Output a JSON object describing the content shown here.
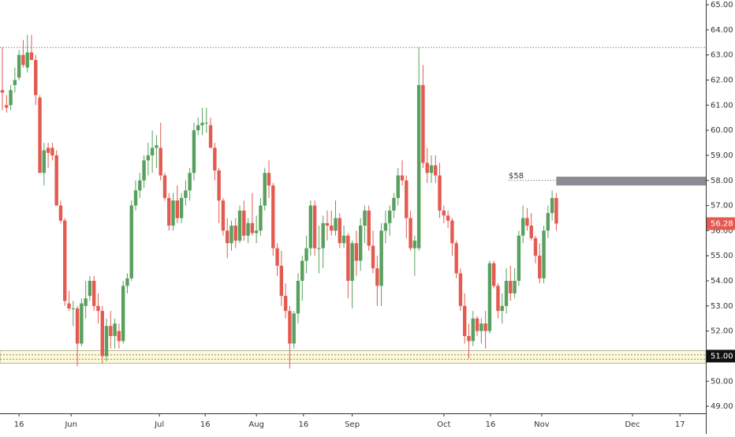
{
  "chart_data": {
    "type": "candlestick",
    "up_color": "#57a05e",
    "down_color": "#e35a50",
    "open": [
      61.6,
      61.0,
      61.0,
      61.8,
      62.1,
      63.0,
      62.5,
      63.1,
      62.8,
      61.3,
      58.3,
      59.3,
      59.3,
      59.0,
      57.0,
      56.4,
      53.1,
      52.9,
      52.9,
      51.5,
      53.0,
      53.4,
      54.0,
      53.0,
      52.8,
      51.0,
      52.2,
      51.8,
      52.0,
      51.6,
      53.8,
      54.1,
      57.0,
      57.6,
      58.0,
      58.8,
      59.0,
      59.3,
      59.3,
      58.2,
      57.3,
      56.2,
      57.2,
      56.5,
      57.3,
      57.6,
      58.3,
      60.0,
      60.2,
      60.3,
      60.2,
      59.3,
      58.4,
      57.2,
      56.0,
      55.5,
      56.2,
      55.6,
      56.8,
      55.8,
      56.3,
      55.9,
      56.0,
      57.0,
      58.3,
      57.8,
      55.3,
      54.6,
      53.4,
      52.8,
      51.5,
      52.7,
      54.0,
      54.8,
      55.3,
      57.0,
      55.3,
      55.3,
      56.3,
      56.2,
      56.0,
      56.5,
      55.5,
      55.8,
      54.0,
      55.5,
      54.8,
      56.2,
      56.8,
      55.4,
      54.5,
      53.8,
      56.0,
      56.3,
      56.8,
      57.3,
      58.2,
      58.0,
      56.5,
      55.3,
      55.3,
      61.8,
      58.7,
      58.3,
      58.6,
      58.2,
      56.8,
      56.6,
      56.4,
      55.5,
      54.3,
      53.0,
      51.8,
      51.6,
      52.5,
      52.0,
      52.3,
      52.0,
      54.7,
      53.8,
      52.8,
      53.0,
      54.0,
      53.5,
      54.0,
      55.8,
      56.5,
      56.2,
      55.7,
      55.0,
      54.1,
      56.0,
      56.7,
      57.3
    ],
    "high": [
      63.3,
      61.4,
      61.8,
      62.5,
      63.2,
      63.6,
      63.8,
      63.8,
      63.0,
      61.4,
      59.5,
      59.5,
      59.5,
      59.2,
      57.2,
      56.5,
      53.6,
      53.2,
      53.0,
      53.3,
      54.0,
      54.2,
      54.2,
      53.5,
      53.0,
      52.5,
      52.8,
      52.5,
      52.3,
      54.0,
      54.3,
      57.2,
      58.0,
      58.3,
      59.0,
      59.5,
      60.0,
      59.8,
      60.3,
      58.3,
      57.5,
      57.5,
      57.8,
      57.5,
      58.0,
      58.5,
      60.3,
      60.5,
      60.9,
      60.9,
      60.5,
      59.5,
      58.5,
      57.3,
      56.5,
      56.4,
      56.5,
      57.0,
      57.2,
      56.5,
      57.5,
      56.6,
      57.3,
      58.5,
      58.8,
      57.9,
      55.5,
      55.2,
      53.9,
      53.0,
      52.8,
      54.3,
      55.0,
      55.8,
      57.2,
      57.2,
      56.2,
      56.6,
      56.8,
      56.8,
      57.2,
      56.7,
      56.2,
      55.9,
      55.6,
      56.0,
      56.5,
      57.0,
      57.0,
      56.0,
      55.0,
      56.3,
      56.8,
      57.0,
      57.5,
      58.5,
      58.8,
      58.2,
      56.8,
      55.8,
      63.3,
      62.6,
      59.3,
      59.0,
      59.0,
      58.7,
      57.0,
      56.8,
      56.5,
      55.6,
      54.5,
      53.5,
      52.3,
      52.8,
      52.6,
      52.5,
      52.8,
      54.8,
      54.8,
      53.9,
      53.5,
      54.5,
      54.6,
      54.5,
      56.0,
      57.0,
      56.9,
      56.7,
      55.8,
      55.5,
      56.2,
      57.0,
      57.6,
      57.5
    ],
    "low": [
      60.8,
      60.7,
      60.8,
      61.5,
      62.0,
      62.5,
      62.3,
      62.8,
      61.0,
      58.3,
      57.8,
      58.5,
      58.8,
      57.0,
      56.3,
      53.0,
      52.8,
      52.2,
      50.6,
      51.4,
      52.5,
      53.2,
      52.8,
      52.3,
      50.7,
      50.8,
      51.3,
      51.3,
      51.3,
      51.5,
      53.5,
      54.0,
      56.8,
      57.3,
      57.7,
      58.2,
      58.3,
      58.5,
      58.0,
      57.2,
      56.0,
      56.0,
      56.3,
      56.3,
      57.0,
      57.2,
      58.0,
      59.8,
      59.8,
      59.9,
      59.3,
      58.0,
      56.3,
      55.8,
      54.9,
      55.2,
      55.3,
      55.5,
      55.6,
      55.5,
      55.8,
      55.5,
      55.8,
      56.8,
      57.3,
      55.0,
      54.2,
      53.0,
      52.5,
      50.5,
      51.3,
      52.3,
      53.2,
      54.3,
      55.0,
      55.0,
      54.3,
      54.5,
      55.6,
      55.8,
      55.8,
      55.3,
      55.3,
      53.3,
      52.9,
      54.2,
      54.4,
      55.5,
      55.2,
      54.3,
      53.0,
      53.0,
      55.5,
      55.8,
      56.5,
      57.0,
      57.8,
      55.7,
      55.2,
      54.2,
      55.2,
      58.5,
      57.9,
      57.9,
      57.9,
      56.5,
      56.3,
      56.1,
      55.0,
      54.1,
      52.8,
      51.5,
      50.9,
      51.4,
      51.8,
      51.5,
      51.3,
      51.9,
      53.7,
      52.5,
      52.3,
      52.7,
      53.2,
      53.3,
      53.8,
      55.5,
      56.0,
      55.6,
      54.7,
      53.9,
      53.9,
      55.7,
      56.4,
      56.0
    ],
    "close": [
      61.5,
      60.9,
      61.6,
      62.0,
      63.0,
      62.6,
      63.1,
      62.8,
      61.4,
      58.3,
      59.2,
      59.1,
      59.0,
      57.0,
      56.4,
      53.2,
      52.9,
      52.9,
      51.5,
      53.1,
      53.3,
      54.0,
      53.0,
      52.8,
      51.0,
      52.2,
      51.8,
      52.3,
      51.6,
      53.8,
      54.1,
      57.0,
      57.6,
      58.0,
      58.8,
      59.0,
      59.3,
      59.4,
      58.2,
      57.3,
      56.2,
      57.2,
      56.5,
      57.3,
      57.6,
      58.3,
      60.0,
      60.2,
      60.3,
      60.3,
      59.3,
      58.4,
      57.2,
      56.0,
      55.5,
      56.2,
      55.6,
      56.8,
      55.8,
      56.3,
      55.9,
      56.0,
      57.0,
      58.3,
      57.8,
      55.3,
      54.6,
      53.4,
      52.8,
      51.5,
      52.7,
      54.0,
      54.8,
      55.3,
      57.0,
      55.3,
      55.3,
      56.3,
      56.2,
      56.0,
      56.5,
      55.5,
      55.8,
      54.0,
      55.5,
      54.8,
      56.2,
      56.8,
      55.4,
      54.5,
      53.8,
      56.0,
      56.3,
      56.8,
      57.3,
      58.2,
      58.0,
      56.5,
      55.3,
      55.6,
      61.8,
      58.7,
      58.3,
      58.6,
      58.2,
      56.8,
      56.6,
      56.4,
      55.5,
      54.3,
      53.0,
      51.8,
      51.6,
      52.5,
      52.0,
      52.3,
      52.0,
      54.7,
      53.8,
      52.8,
      53.0,
      54.0,
      53.5,
      54.0,
      55.8,
      56.5,
      56.2,
      55.7,
      55.0,
      54.1,
      56.0,
      56.7,
      57.3,
      56.28
    ],
    "xlim": [
      -0.57,
      168.9
    ],
    "xticks": [
      {
        "value": 4,
        "label": "16"
      },
      {
        "value": 16.5,
        "label": "Jun"
      },
      {
        "value": 37.7,
        "label": "Jul"
      },
      {
        "value": 48.7,
        "label": "16"
      },
      {
        "value": 61,
        "label": "Aug"
      },
      {
        "value": 72.3,
        "label": "16"
      },
      {
        "value": 84,
        "label": "Sep"
      },
      {
        "value": 106,
        "label": "Oct"
      },
      {
        "value": 117.2,
        "label": "16"
      },
      {
        "value": 129.5,
        "label": "Nov"
      },
      {
        "value": 151.3,
        "label": "Dec"
      },
      {
        "value": 162.7,
        "label": "17"
      }
    ],
    "ylim": [
      48.72,
      65.19
    ],
    "yticks": [
      {
        "value": 49,
        "label": "49.00"
      },
      {
        "value": 50,
        "label": "50.00"
      },
      {
        "value": 51,
        "label": "51.00"
      },
      {
        "value": 52,
        "label": "52.00"
      },
      {
        "value": 53,
        "label": "53.00"
      },
      {
        "value": 54,
        "label": "54.00"
      },
      {
        "value": 55,
        "label": "55.00"
      },
      {
        "value": 56,
        "label": "56.00"
      },
      {
        "value": 57,
        "label": "57.00"
      },
      {
        "value": 58,
        "label": "58.00"
      },
      {
        "value": 59,
        "label": "59.00"
      },
      {
        "value": 60,
        "label": "60.00"
      },
      {
        "value": 61,
        "label": "61.00"
      },
      {
        "value": 62,
        "label": "62.00"
      },
      {
        "value": 63,
        "label": "63.00"
      },
      {
        "value": 64,
        "label": "64.00"
      },
      {
        "value": 65,
        "label": "65.00"
      }
    ],
    "resistance_line": 63.3,
    "target": {
      "value": 58,
      "label": "$58"
    },
    "target_zone": [
      57.8,
      58.15
    ],
    "support_zone": [
      50.72,
      51.22
    ],
    "support_lines": [
      51.05,
      50.88
    ],
    "support_label": {
      "value": 51,
      "label": "51.00"
    },
    "last_price": {
      "value": 56.28,
      "label": "56.28"
    }
  }
}
